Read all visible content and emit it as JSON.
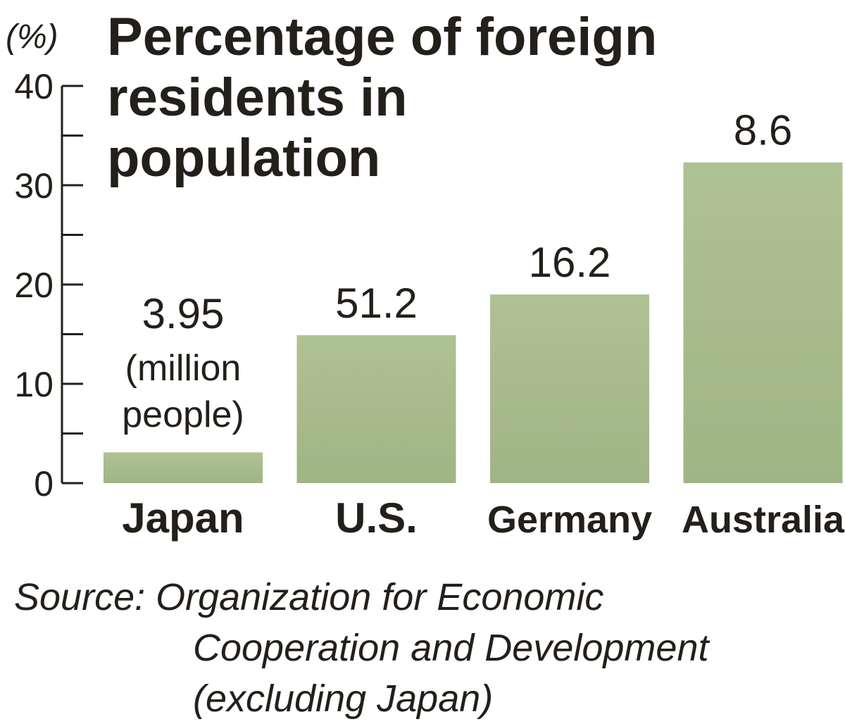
{
  "chart_data": {
    "type": "bar",
    "title_lines": [
      "Percentage of foreign",
      "residents in",
      "population"
    ],
    "ylabel": "(%)",
    "ylim": [
      0,
      40
    ],
    "major_ticks": [
      0,
      10,
      20,
      30,
      40
    ],
    "minor_ticks": [
      5,
      15,
      25,
      35
    ],
    "grid": false,
    "categories": [
      "Japan",
      "U.S.",
      "Germany",
      "Australia"
    ],
    "values": [
      3.1,
      14.9,
      19.0,
      32.3
    ],
    "data_labels": [
      "3.95",
      "51.2",
      "16.2",
      "8.6"
    ],
    "data_label_note_lines": [
      "(million",
      "people)"
    ],
    "bar_color": "#a9bd8e",
    "text_color": "#231f1a",
    "source_lines": [
      "Source: Organization for Economic",
      "Cooperation and Development",
      "(excluding Japan)"
    ]
  }
}
